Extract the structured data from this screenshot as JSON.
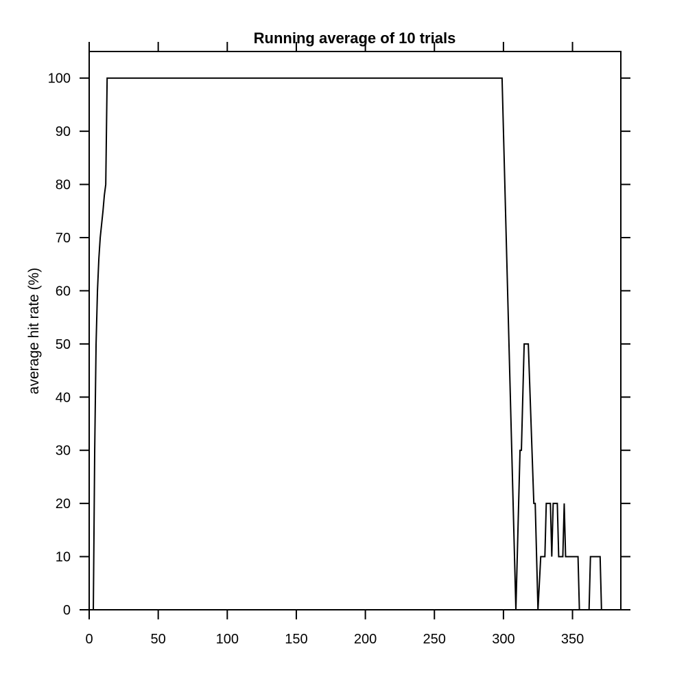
{
  "chart_data": {
    "type": "line",
    "title": "Running average of 10 trials",
    "xlabel": "",
    "ylabel": "average hit rate (%)",
    "xlim": [
      0,
      385
    ],
    "ylim": [
      0,
      105
    ],
    "x_ticks": [
      0,
      50,
      100,
      150,
      200,
      250,
      300,
      350
    ],
    "y_ticks": [
      0,
      10,
      20,
      30,
      40,
      50,
      60,
      70,
      80,
      90,
      100
    ],
    "grid": false,
    "series": [
      {
        "color": "#000000",
        "points": [
          [
            0,
            0
          ],
          [
            2,
            0
          ],
          [
            3,
            0
          ],
          [
            4,
            30
          ],
          [
            5,
            50
          ],
          [
            6,
            60
          ],
          [
            7,
            66
          ],
          [
            8,
            70
          ],
          [
            10,
            75
          ],
          [
            11,
            78
          ],
          [
            12,
            80
          ],
          [
            13,
            100
          ],
          [
            299,
            100
          ],
          [
            309,
            0
          ],
          [
            311,
            20
          ],
          [
            312,
            30
          ],
          [
            313,
            30
          ],
          [
            315,
            50
          ],
          [
            318,
            50
          ],
          [
            322,
            20
          ],
          [
            323,
            20
          ],
          [
            325,
            0
          ],
          [
            327,
            10
          ],
          [
            330,
            10
          ],
          [
            331,
            20
          ],
          [
            334,
            20
          ],
          [
            335,
            10
          ],
          [
            336,
            20
          ],
          [
            339,
            20
          ],
          [
            340,
            10
          ],
          [
            343,
            10
          ],
          [
            344,
            20
          ],
          [
            345,
            10
          ],
          [
            354,
            10
          ],
          [
            355,
            0
          ],
          [
            362,
            0
          ],
          [
            363,
            10
          ],
          [
            370,
            10
          ],
          [
            371,
            0
          ],
          [
            382,
            0
          ]
        ]
      }
    ]
  }
}
